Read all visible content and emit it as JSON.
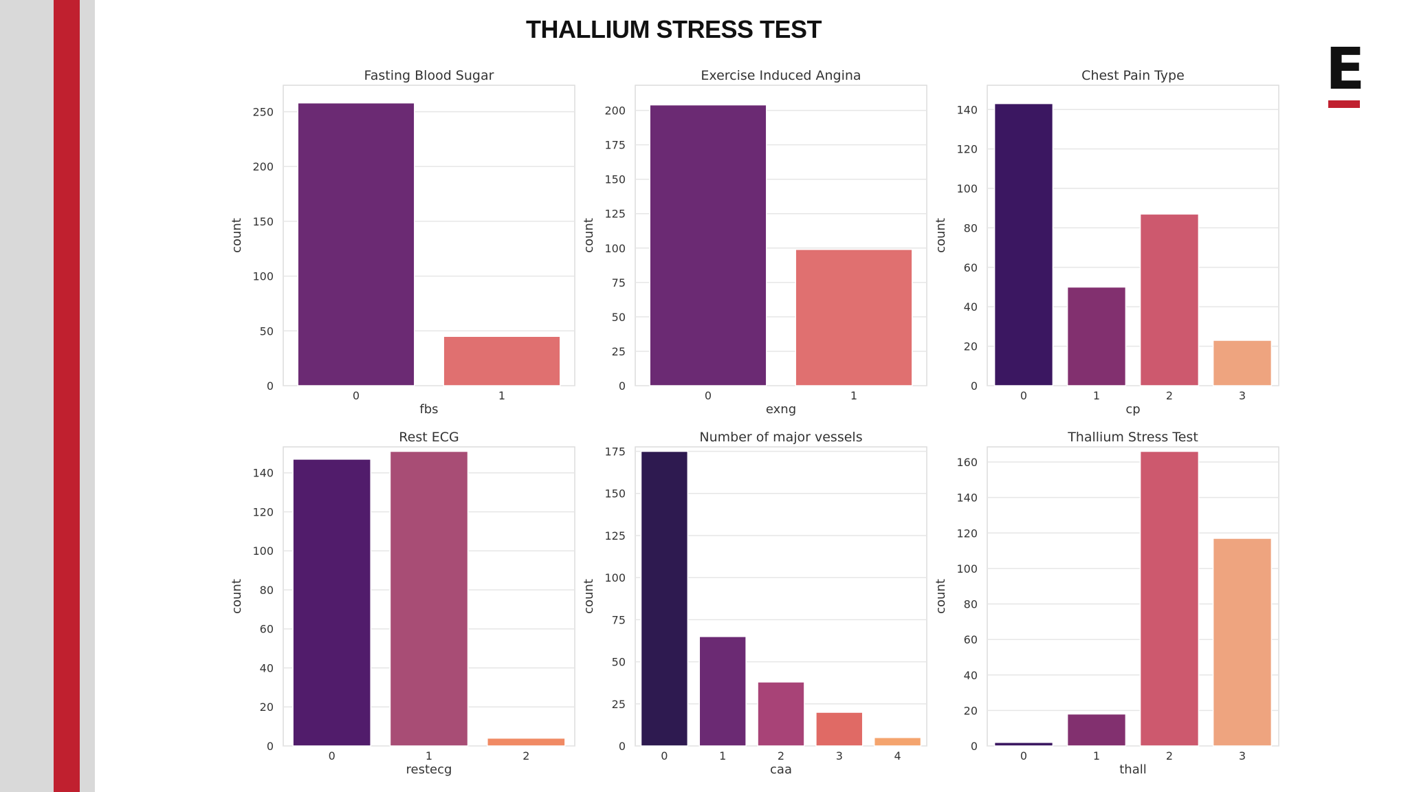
{
  "slide": {
    "title": "THALLIUM STRESS TEST",
    "logo_text": "E",
    "accent_color": "#c0202f"
  },
  "chart_data": [
    {
      "type": "bar",
      "title": "Fasting Blood Sugar",
      "xlabel": "fbs",
      "ylabel": "count",
      "categories": [
        "0",
        "1"
      ],
      "values": [
        258,
        45
      ],
      "ylim": [
        0,
        270
      ],
      "yticks": [
        0,
        50,
        100,
        150,
        200,
        250
      ],
      "colors": [
        "#6b2a73",
        "#e07070"
      ],
      "grid": true
    },
    {
      "type": "bar",
      "title": "Exercise Induced Angina",
      "xlabel": "exng",
      "ylabel": "count",
      "categories": [
        "0",
        "1"
      ],
      "values": [
        204,
        99
      ],
      "ylim": [
        0,
        215
      ],
      "yticks": [
        0,
        25,
        50,
        75,
        100,
        125,
        150,
        175,
        200
      ],
      "colors": [
        "#6b2a73",
        "#e07070"
      ],
      "grid": true
    },
    {
      "type": "bar",
      "title": "Chest Pain Type",
      "xlabel": "cp",
      "ylabel": "count",
      "categories": [
        "0",
        "1",
        "2",
        "3"
      ],
      "values": [
        143,
        50,
        87,
        23
      ],
      "ylim": [
        0,
        150
      ],
      "yticks": [
        0,
        20,
        40,
        60,
        80,
        100,
        120,
        140
      ],
      "colors": [
        "#3b1761",
        "#82306f",
        "#cd596e",
        "#eea47f"
      ],
      "grid": true
    },
    {
      "type": "bar",
      "title": "Rest ECG",
      "xlabel": "restecg",
      "ylabel": "count",
      "categories": [
        "0",
        "1",
        "2"
      ],
      "values": [
        147,
        151,
        4
      ],
      "ylim": [
        0,
        151
      ],
      "yticks": [
        0,
        20,
        40,
        60,
        80,
        100,
        120,
        140
      ],
      "colors": [
        "#511c6b",
        "#a84d75",
        "#f08a64"
      ],
      "grid": true
    },
    {
      "type": "bar",
      "title": "Number of major vessels",
      "xlabel": "caa",
      "ylabel": "count",
      "categories": [
        "0",
        "1",
        "2",
        "3",
        "4"
      ],
      "values": [
        175,
        65,
        38,
        20,
        5
      ],
      "ylim": [
        0,
        175
      ],
      "yticks": [
        0,
        25,
        50,
        75,
        100,
        125,
        150,
        175
      ],
      "colors": [
        "#2e1a50",
        "#6b2a73",
        "#a84377",
        "#e06a65",
        "#f4a46e"
      ],
      "grid": true
    },
    {
      "type": "bar",
      "title": "Thallium Stress Test",
      "xlabel": "thall",
      "ylabel": "count",
      "categories": [
        "0",
        "1",
        "2",
        "3"
      ],
      "values": [
        2,
        18,
        166,
        117
      ],
      "ylim": [
        0,
        166
      ],
      "yticks": [
        0,
        20,
        40,
        60,
        80,
        100,
        120,
        140,
        160
      ],
      "colors": [
        "#3b1761",
        "#82306f",
        "#cd596e",
        "#eea47f"
      ],
      "grid": true
    }
  ]
}
